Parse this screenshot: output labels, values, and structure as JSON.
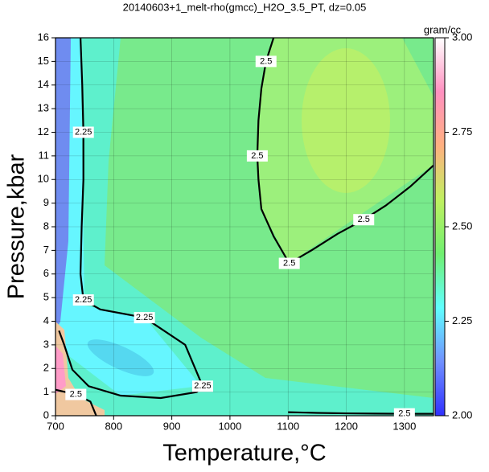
{
  "chart_data": {
    "type": "contour",
    "title": "20140603+1_melt-rho(gmcc)_H2O_3.5_PT, dz=0.05",
    "x_label": "Temperature,°C",
    "y_label": "Pressure,kbar",
    "xlim": [
      700,
      1350
    ],
    "xticks": [
      700,
      800,
      900,
      1000,
      1100,
      1200,
      1300
    ],
    "ylim": [
      0,
      16
    ],
    "yticks": [
      0,
      1,
      2,
      3,
      4,
      5,
      6,
      7,
      8,
      9,
      10,
      11,
      12,
      13,
      14,
      15,
      16
    ],
    "grid": true,
    "contours": [
      {
        "level": 2.25,
        "color": "#000000",
        "lines": [
          {
            "x": [
              743,
              746,
              748,
              748,
              745,
              743,
              748,
              777,
              853,
              923,
              953,
              943,
              881,
              812,
              757,
              729,
              715,
              706
            ],
            "y": [
              16,
              14,
              12,
              10,
              8,
              6,
              4.9,
              4.5,
              4.15,
              3,
              1.25,
              1.0,
              0.75,
              0.85,
              1.25,
              1.95,
              3.0,
              3.6
            ]
          }
        ]
      },
      {
        "level": 2.5,
        "color": "#000000",
        "lines": [
          {
            "x": [
              1075,
              1062,
              1054,
              1049,
              1047,
              1049,
              1054,
              1075,
              1102,
              1140,
              1185,
              1230,
              1268,
              1310,
              1350
            ],
            "y": [
              16,
              15,
              13.85,
              12.5,
              11,
              10,
              8.75,
              7.6,
              6.45,
              7.0,
              7.7,
              8.3,
              8.9,
              9.7,
              10.6
            ]
          },
          {
            "x": [
              1100,
              1150,
              1200,
              1250,
              1300,
              1350
            ],
            "y": [
              0.15,
              0.12,
              0.1,
              0.09,
              0.08,
              0.08
            ]
          },
          {
            "x": [
              700,
              735,
              760,
              770
            ],
            "y": [
              1.1,
              0.9,
              0.6,
              0
            ]
          }
        ]
      }
    ],
    "colorbar": {
      "label": "gram/cc",
      "lim": [
        2,
        3
      ],
      "colors": [
        "#3030ff",
        "#7090ff",
        "#60ffff",
        "#70f070",
        "#c0f060",
        "#ffb080",
        "#ff90c0",
        "#ffffff"
      ],
      "ticks": [
        {
          "value": 2,
          "label": "2.00"
        },
        {
          "value": 2.25,
          "label": "2.25"
        },
        {
          "value": 2.5,
          "label": "2.50"
        },
        {
          "value": 2.75,
          "label": "2.75"
        },
        {
          "value": 3,
          "label": "3.00"
        }
      ]
    }
  }
}
